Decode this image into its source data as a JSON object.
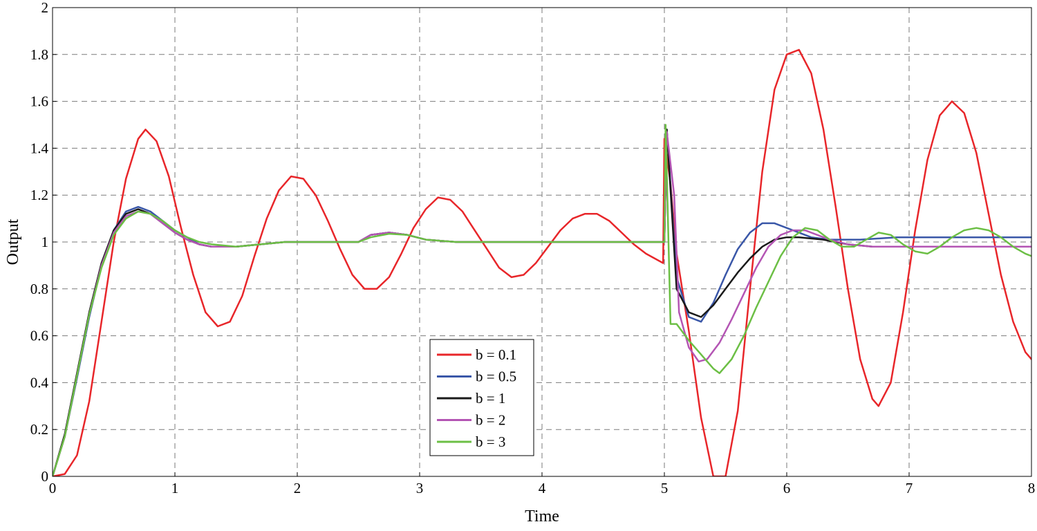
{
  "chart_data": {
    "type": "line",
    "title": "",
    "xlabel": "Time",
    "ylabel": "Output",
    "xlim": [
      0,
      8
    ],
    "ylim": [
      0,
      2
    ],
    "xticks": [
      "0",
      "1",
      "2",
      "3",
      "4",
      "5",
      "6",
      "7",
      "8"
    ],
    "yticks": [
      "0",
      "0.2",
      "0.4",
      "0.6",
      "0.8",
      "1",
      "1.2",
      "1.4",
      "1.6",
      "1.8",
      "2"
    ],
    "grid": true,
    "legend_position": "bottom-center",
    "series": [
      {
        "name": "b = 0.1",
        "color": "#e8262a",
        "points": [
          [
            0,
            0
          ],
          [
            0.1,
            0.01
          ],
          [
            0.2,
            0.09
          ],
          [
            0.3,
            0.32
          ],
          [
            0.4,
            0.66
          ],
          [
            0.5,
            1.0
          ],
          [
            0.6,
            1.27
          ],
          [
            0.7,
            1.44
          ],
          [
            0.76,
            1.48
          ],
          [
            0.85,
            1.43
          ],
          [
            0.95,
            1.28
          ],
          [
            1.05,
            1.06
          ],
          [
            1.15,
            0.86
          ],
          [
            1.25,
            0.7
          ],
          [
            1.35,
            0.64
          ],
          [
            1.45,
            0.66
          ],
          [
            1.55,
            0.77
          ],
          [
            1.65,
            0.94
          ],
          [
            1.75,
            1.1
          ],
          [
            1.85,
            1.22
          ],
          [
            1.95,
            1.28
          ],
          [
            2.05,
            1.27
          ],
          [
            2.15,
            1.2
          ],
          [
            2.25,
            1.09
          ],
          [
            2.35,
            0.97
          ],
          [
            2.45,
            0.86
          ],
          [
            2.55,
            0.8
          ],
          [
            2.65,
            0.8
          ],
          [
            2.75,
            0.85
          ],
          [
            2.85,
            0.95
          ],
          [
            2.95,
            1.06
          ],
          [
            3.05,
            1.14
          ],
          [
            3.15,
            1.19
          ],
          [
            3.25,
            1.18
          ],
          [
            3.35,
            1.13
          ],
          [
            3.45,
            1.05
          ],
          [
            3.55,
            0.97
          ],
          [
            3.65,
            0.89
          ],
          [
            3.75,
            0.85
          ],
          [
            3.85,
            0.86
          ],
          [
            3.95,
            0.91
          ],
          [
            4.05,
            0.98
          ],
          [
            4.15,
            1.05
          ],
          [
            4.25,
            1.1
          ],
          [
            4.35,
            1.12
          ],
          [
            4.45,
            1.12
          ],
          [
            4.55,
            1.09
          ],
          [
            4.65,
            1.04
          ],
          [
            4.75,
            0.99
          ],
          [
            4.85,
            0.95
          ],
          [
            4.99,
            0.91
          ],
          [
            5.0,
            1.44
          ],
          [
            5.05,
            1.25
          ],
          [
            5.1,
            0.95
          ],
          [
            5.2,
            0.62
          ],
          [
            5.3,
            0.25
          ],
          [
            5.4,
            0.0
          ],
          [
            5.5,
            0.0
          ],
          [
            5.6,
            0.28
          ],
          [
            5.7,
            0.8
          ],
          [
            5.8,
            1.3
          ],
          [
            5.9,
            1.65
          ],
          [
            6.0,
            1.8
          ],
          [
            6.1,
            1.82
          ],
          [
            6.2,
            1.72
          ],
          [
            6.3,
            1.48
          ],
          [
            6.4,
            1.15
          ],
          [
            6.5,
            0.8
          ],
          [
            6.6,
            0.5
          ],
          [
            6.7,
            0.33
          ],
          [
            6.75,
            0.3
          ],
          [
            6.85,
            0.4
          ],
          [
            6.95,
            0.7
          ],
          [
            7.05,
            1.05
          ],
          [
            7.15,
            1.35
          ],
          [
            7.25,
            1.54
          ],
          [
            7.35,
            1.6
          ],
          [
            7.45,
            1.55
          ],
          [
            7.55,
            1.38
          ],
          [
            7.65,
            1.12
          ],
          [
            7.75,
            0.86
          ],
          [
            7.85,
            0.66
          ],
          [
            7.95,
            0.53
          ],
          [
            8.0,
            0.5
          ]
        ]
      },
      {
        "name": "b = 0.5",
        "color": "#3a57a8",
        "points": [
          [
            0,
            0
          ],
          [
            0.1,
            0.17
          ],
          [
            0.2,
            0.42
          ],
          [
            0.3,
            0.68
          ],
          [
            0.4,
            0.9
          ],
          [
            0.5,
            1.05
          ],
          [
            0.6,
            1.13
          ],
          [
            0.7,
            1.15
          ],
          [
            0.8,
            1.13
          ],
          [
            0.9,
            1.09
          ],
          [
            1.0,
            1.05
          ],
          [
            1.1,
            1.02
          ],
          [
            1.2,
            0.99
          ],
          [
            1.3,
            0.98
          ],
          [
            1.5,
            0.98
          ],
          [
            1.7,
            0.99
          ],
          [
            1.9,
            1.0
          ],
          [
            2.5,
            1.0
          ],
          [
            2.6,
            1.03
          ],
          [
            2.75,
            1.04
          ],
          [
            2.9,
            1.03
          ],
          [
            3.05,
            1.01
          ],
          [
            3.3,
            1.0
          ],
          [
            5.0,
            1.0
          ],
          [
            5.02,
            1.48
          ],
          [
            5.1,
            0.85
          ],
          [
            5.2,
            0.68
          ],
          [
            5.3,
            0.66
          ],
          [
            5.4,
            0.74
          ],
          [
            5.5,
            0.86
          ],
          [
            5.6,
            0.97
          ],
          [
            5.7,
            1.04
          ],
          [
            5.8,
            1.08
          ],
          [
            5.9,
            1.08
          ],
          [
            6.0,
            1.06
          ],
          [
            6.1,
            1.04
          ],
          [
            6.2,
            1.02
          ],
          [
            6.35,
            1.01
          ],
          [
            6.6,
            1.01
          ],
          [
            6.9,
            1.02
          ],
          [
            8.0,
            1.02
          ]
        ]
      },
      {
        "name": "b = 1",
        "color": "#1a1a1a",
        "points": [
          [
            0,
            0
          ],
          [
            0.1,
            0.18
          ],
          [
            0.2,
            0.44
          ],
          [
            0.3,
            0.7
          ],
          [
            0.4,
            0.91
          ],
          [
            0.5,
            1.05
          ],
          [
            0.6,
            1.12
          ],
          [
            0.7,
            1.14
          ],
          [
            0.8,
            1.12
          ],
          [
            0.9,
            1.08
          ],
          [
            1.0,
            1.04
          ],
          [
            1.1,
            1.01
          ],
          [
            1.2,
            0.99
          ],
          [
            1.3,
            0.98
          ],
          [
            1.5,
            0.98
          ],
          [
            1.7,
            0.99
          ],
          [
            1.9,
            1.0
          ],
          [
            2.5,
            1.0
          ],
          [
            2.6,
            1.03
          ],
          [
            2.75,
            1.04
          ],
          [
            2.9,
            1.03
          ],
          [
            3.05,
            1.01
          ],
          [
            3.3,
            1.0
          ],
          [
            5.0,
            1.0
          ],
          [
            5.02,
            1.48
          ],
          [
            5.1,
            0.8
          ],
          [
            5.2,
            0.7
          ],
          [
            5.3,
            0.68
          ],
          [
            5.4,
            0.73
          ],
          [
            5.5,
            0.8
          ],
          [
            5.6,
            0.87
          ],
          [
            5.7,
            0.93
          ],
          [
            5.8,
            0.98
          ],
          [
            5.9,
            1.01
          ],
          [
            6.0,
            1.02
          ],
          [
            6.1,
            1.02
          ],
          [
            6.3,
            1.01
          ],
          [
            6.5,
            0.99
          ],
          [
            6.7,
            0.98
          ],
          [
            7.0,
            0.98
          ],
          [
            8.0,
            0.98
          ]
        ]
      },
      {
        "name": "b = 2",
        "color": "#b455b4",
        "points": [
          [
            0,
            0
          ],
          [
            0.1,
            0.17
          ],
          [
            0.2,
            0.43
          ],
          [
            0.3,
            0.69
          ],
          [
            0.4,
            0.9
          ],
          [
            0.5,
            1.04
          ],
          [
            0.6,
            1.11
          ],
          [
            0.7,
            1.13
          ],
          [
            0.8,
            1.12
          ],
          [
            0.9,
            1.08
          ],
          [
            1.0,
            1.04
          ],
          [
            1.1,
            1.01
          ],
          [
            1.2,
            0.99
          ],
          [
            1.3,
            0.98
          ],
          [
            1.5,
            0.98
          ],
          [
            1.7,
            0.99
          ],
          [
            1.9,
            1.0
          ],
          [
            2.5,
            1.0
          ],
          [
            2.6,
            1.03
          ],
          [
            2.75,
            1.04
          ],
          [
            2.9,
            1.03
          ],
          [
            3.05,
            1.01
          ],
          [
            3.3,
            1.0
          ],
          [
            5.0,
            1.0
          ],
          [
            5.02,
            1.47
          ],
          [
            5.08,
            1.2
          ],
          [
            5.12,
            0.7
          ],
          [
            5.2,
            0.55
          ],
          [
            5.28,
            0.49
          ],
          [
            5.35,
            0.5
          ],
          [
            5.45,
            0.57
          ],
          [
            5.55,
            0.67
          ],
          [
            5.65,
            0.78
          ],
          [
            5.75,
            0.89
          ],
          [
            5.85,
            0.98
          ],
          [
            5.95,
            1.03
          ],
          [
            6.05,
            1.05
          ],
          [
            6.15,
            1.05
          ],
          [
            6.25,
            1.03
          ],
          [
            6.35,
            1.01
          ],
          [
            6.5,
            0.99
          ],
          [
            6.7,
            0.98
          ],
          [
            7.0,
            0.98
          ],
          [
            8.0,
            0.98
          ]
        ]
      },
      {
        "name": "b = 3",
        "color": "#6cbf45",
        "points": [
          [
            0,
            0
          ],
          [
            0.1,
            0.17
          ],
          [
            0.2,
            0.43
          ],
          [
            0.3,
            0.69
          ],
          [
            0.4,
            0.89
          ],
          [
            0.5,
            1.03
          ],
          [
            0.6,
            1.1
          ],
          [
            0.7,
            1.13
          ],
          [
            0.8,
            1.12
          ],
          [
            0.9,
            1.09
          ],
          [
            1.0,
            1.05
          ],
          [
            1.1,
            1.02
          ],
          [
            1.2,
            1.0
          ],
          [
            1.3,
            0.99
          ],
          [
            1.5,
            0.98
          ],
          [
            1.7,
            0.99
          ],
          [
            1.9,
            1.0
          ],
          [
            2.5,
            1.0
          ],
          [
            2.6,
            1.02
          ],
          [
            2.75,
            1.035
          ],
          [
            2.9,
            1.03
          ],
          [
            3.05,
            1.01
          ],
          [
            3.3,
            1.0
          ],
          [
            5.0,
            1.0
          ],
          [
            5.01,
            1.5
          ],
          [
            5.05,
            0.65
          ],
          [
            5.1,
            0.65
          ],
          [
            5.2,
            0.58
          ],
          [
            5.3,
            0.52
          ],
          [
            5.4,
            0.46
          ],
          [
            5.45,
            0.44
          ],
          [
            5.55,
            0.5
          ],
          [
            5.65,
            0.6
          ],
          [
            5.75,
            0.72
          ],
          [
            5.85,
            0.83
          ],
          [
            5.95,
            0.94
          ],
          [
            6.05,
            1.02
          ],
          [
            6.15,
            1.06
          ],
          [
            6.25,
            1.05
          ],
          [
            6.35,
            1.01
          ],
          [
            6.45,
            0.98
          ],
          [
            6.55,
            0.98
          ],
          [
            6.65,
            1.01
          ],
          [
            6.75,
            1.04
          ],
          [
            6.85,
            1.03
          ],
          [
            6.95,
            0.99
          ],
          [
            7.05,
            0.96
          ],
          [
            7.15,
            0.95
          ],
          [
            7.25,
            0.98
          ],
          [
            7.35,
            1.02
          ],
          [
            7.45,
            1.05
          ],
          [
            7.55,
            1.06
          ],
          [
            7.65,
            1.05
          ],
          [
            7.75,
            1.02
          ],
          [
            7.85,
            0.98
          ],
          [
            7.95,
            0.95
          ],
          [
            8.0,
            0.94
          ]
        ]
      }
    ]
  }
}
